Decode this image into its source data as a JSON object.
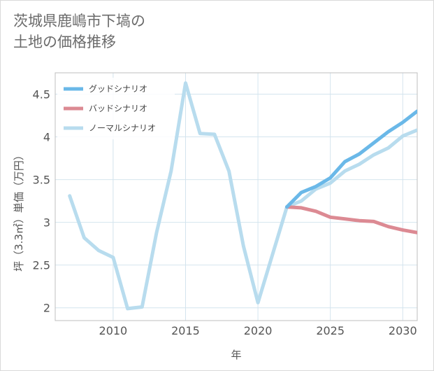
{
  "title": {
    "line1": "茨城県鹿嶋市下塙の",
    "line2": "土地の価格推移"
  },
  "chart_data": {
    "type": "line",
    "title": "茨城県鹿嶋市下塙の土地の価格推移",
    "xlabel": "年",
    "ylabel": "坪（3.3㎡）単価（万円）",
    "xlim": [
      2006,
      2031
    ],
    "ylim": [
      1.85,
      4.75
    ],
    "xticks": [
      2010,
      2015,
      2020,
      2025,
      2030
    ],
    "xtick_labels": [
      "2010",
      "2015",
      "2020",
      "2025",
      "2030"
    ],
    "yticks": [
      2,
      2.5,
      3,
      3.5,
      4,
      4.5
    ],
    "ytick_labels": [
      "2",
      "2.5",
      "3",
      "3.5",
      "4",
      "4.5"
    ],
    "grid": true,
    "legend_position": "top-left",
    "series": [
      {
        "name": "グッドシナリオ",
        "color": "#6ab8e8",
        "x": [
          2022,
          2023,
          2024,
          2025,
          2026,
          2027,
          2028,
          2029,
          2030,
          2031
        ],
        "values": [
          3.18,
          3.35,
          3.42,
          3.52,
          3.71,
          3.8,
          3.93,
          4.06,
          4.17,
          4.3
        ]
      },
      {
        "name": "バッドシナリオ",
        "color": "#dc8a93",
        "x": [
          2022,
          2023,
          2024,
          2025,
          2026,
          2027,
          2028,
          2029,
          2030,
          2031
        ],
        "values": [
          3.18,
          3.17,
          3.13,
          3.06,
          3.04,
          3.02,
          3.01,
          2.95,
          2.91,
          2.88
        ]
      },
      {
        "name": "ノーマルシナリオ",
        "color": "#b8dcee",
        "x": [
          2007,
          2008,
          2009,
          2010,
          2011,
          2012,
          2013,
          2014,
          2015,
          2016,
          2017,
          2018,
          2019,
          2020,
          2021,
          2022,
          2023,
          2024,
          2025,
          2026,
          2027,
          2028,
          2029,
          2030,
          2031
        ],
        "values": [
          3.31,
          2.82,
          2.67,
          2.59,
          1.99,
          2.01,
          2.88,
          3.6,
          4.63,
          4.04,
          4.03,
          3.6,
          2.72,
          2.06,
          2.62,
          3.18,
          3.25,
          3.39,
          3.46,
          3.6,
          3.68,
          3.79,
          3.87,
          4.01,
          4.08
        ]
      }
    ]
  }
}
